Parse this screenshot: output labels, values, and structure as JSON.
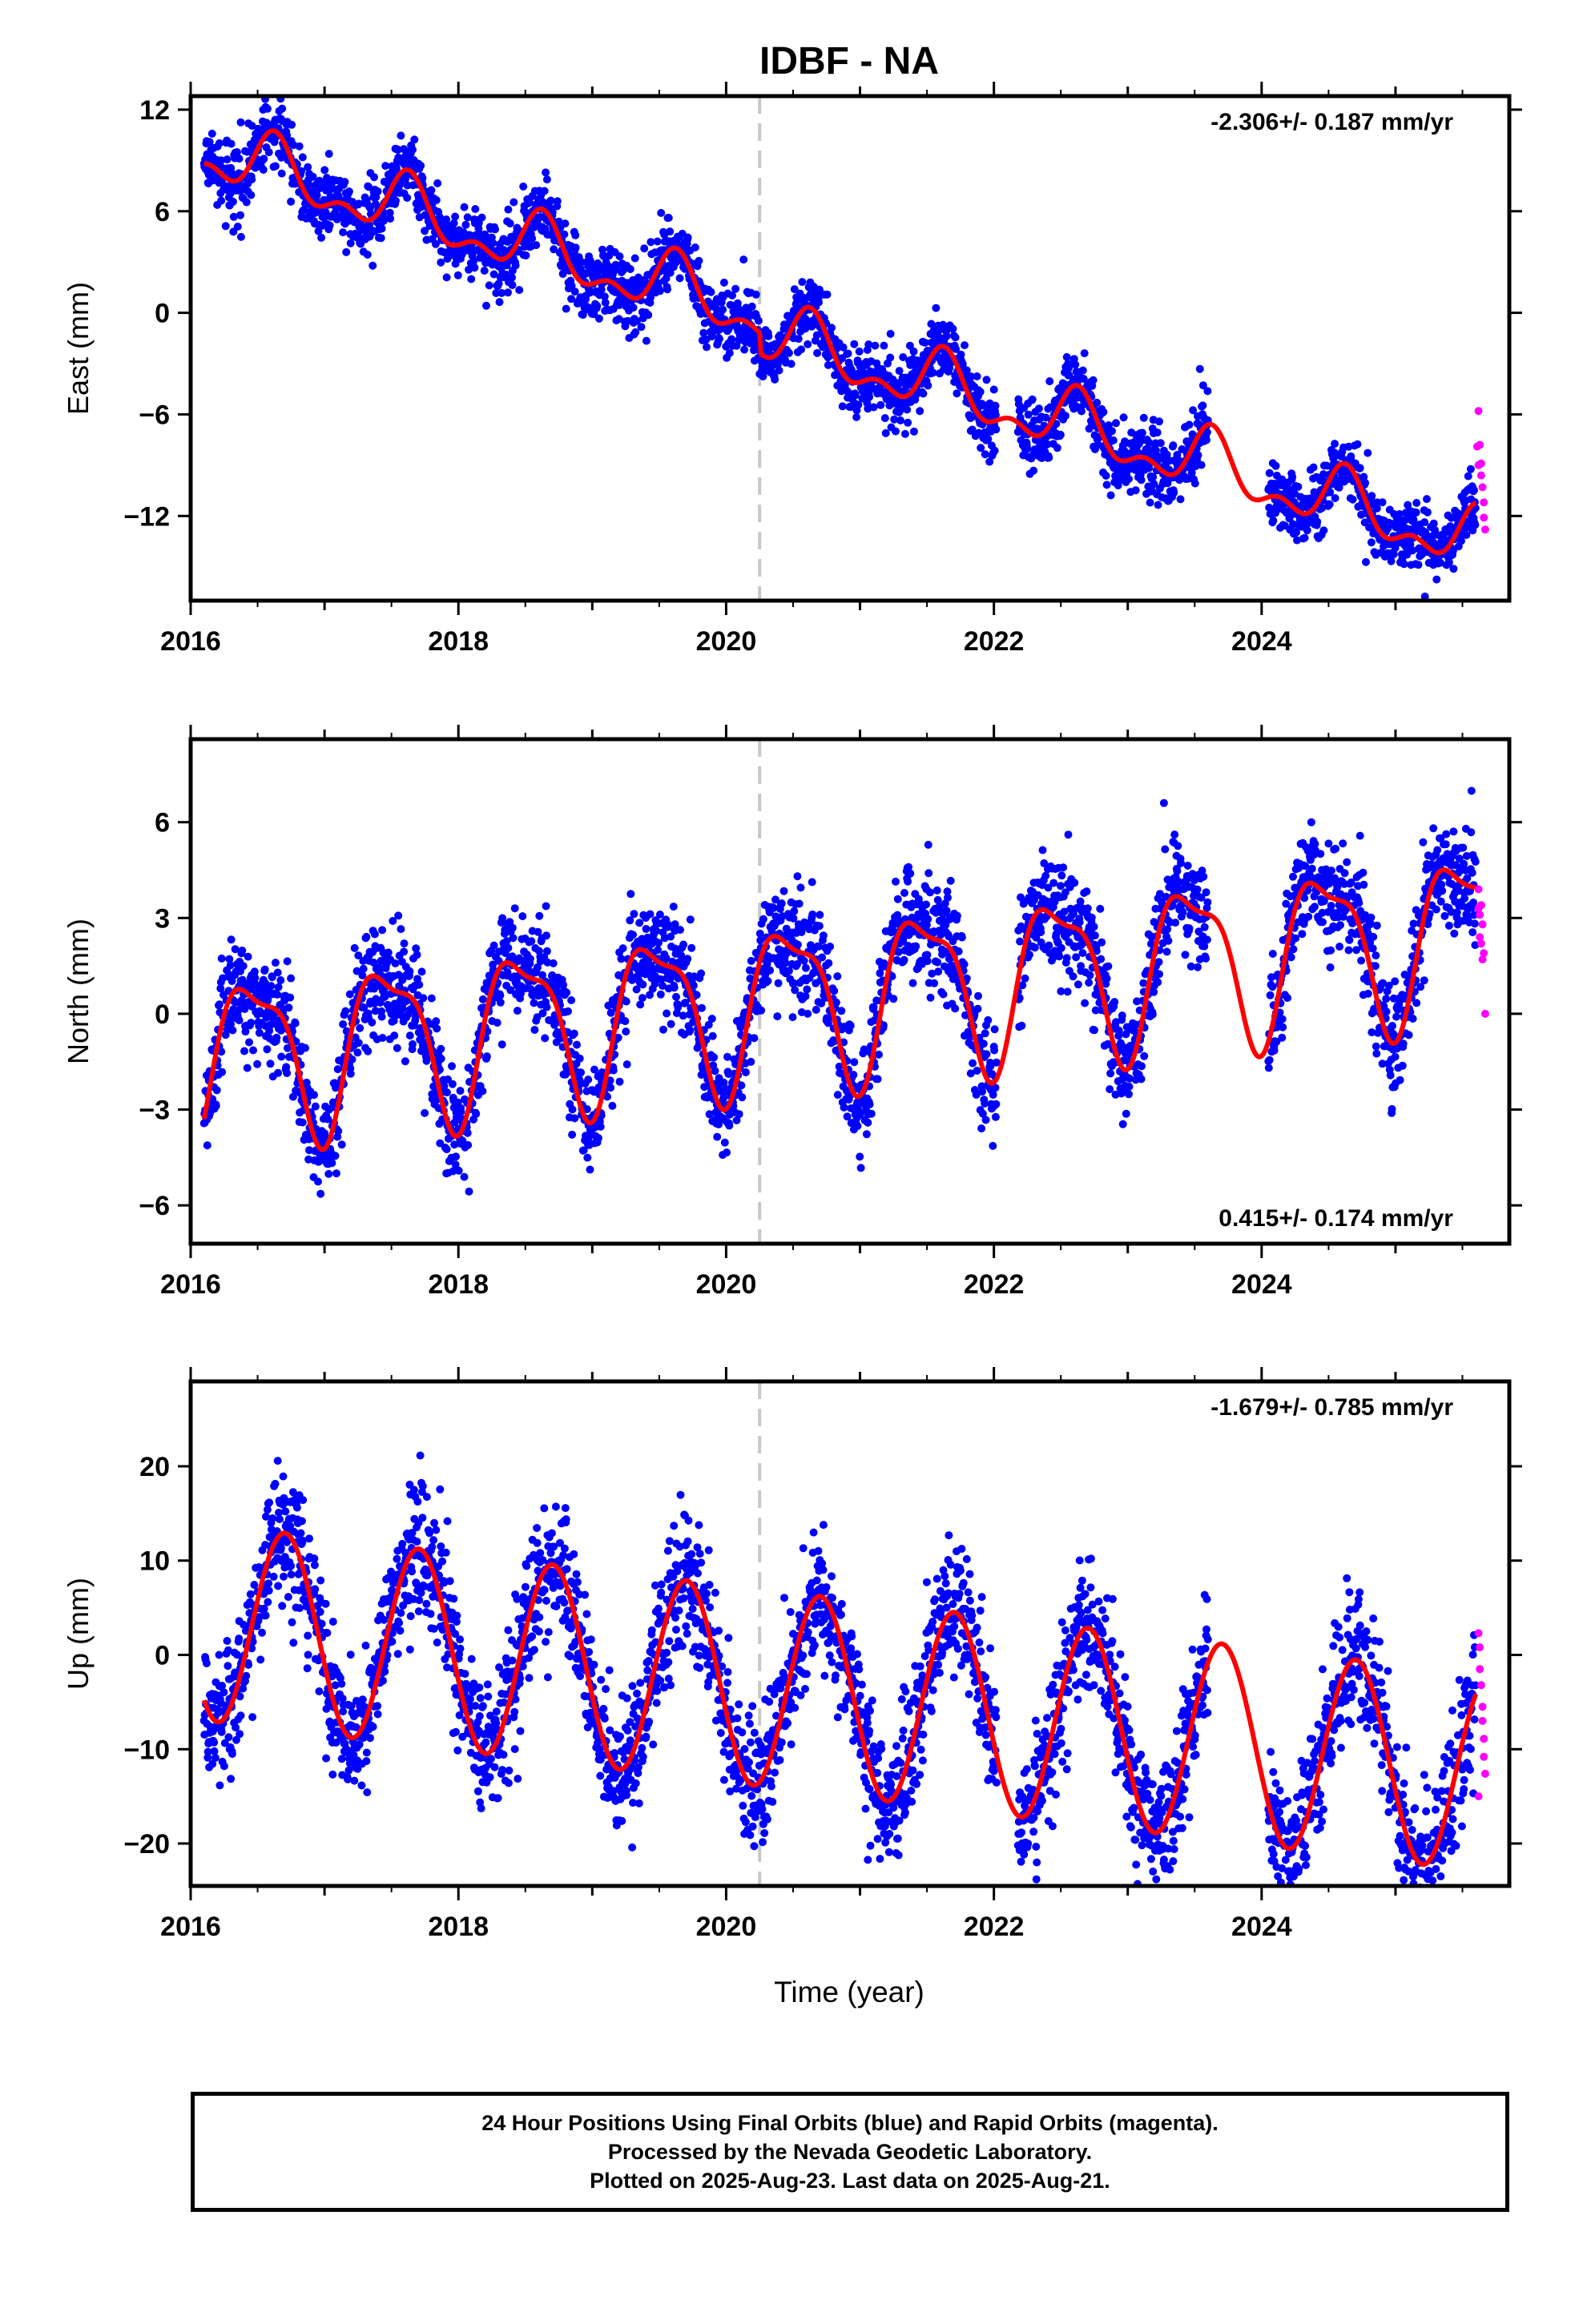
{
  "title": "IDBF - NA",
  "xlabel": "Time (year)",
  "footer": {
    "line1": "24 Hour Positions Using Final Orbits (blue) and Rapid Orbits (magenta).",
    "line2": "Processed by the Nevada Geodetic Laboratory.",
    "line3": "Plotted on 2025-Aug-23. Last data on 2025-Aug-21."
  },
  "colors": {
    "final": "#0000ff",
    "rapid": "#ff00ff",
    "model": "#ff0000",
    "event_line": "#c8c8c8",
    "frame": "#000000"
  },
  "chart_data": [
    {
      "type": "scatter",
      "component": "East",
      "ylabel": "East (mm)",
      "rate_label": "-2.306+/- 0.187 mm/yr",
      "xlim": [
        2016.0,
        2025.85
      ],
      "ylim": [
        -17,
        12.8
      ],
      "yticks": [
        -12,
        -6,
        0,
        6,
        12
      ],
      "xticks": [
        2016,
        2018,
        2020,
        2022,
        2024
      ],
      "event_lines": [
        2020.25
      ],
      "model": {
        "x0": 2016.1,
        "y0": 9.5,
        "rate": -2.306,
        "annual_cos": -1.1,
        "annual_sin": -1.1,
        "semi_cos": 0.0,
        "semi_sin": 0.9,
        "steps": [
          {
            "x": 2020.25,
            "dy": -1.2
          }
        ],
        "segments": [
          [
            2016.1,
            2025.6
          ]
        ]
      },
      "final_points": {
        "gaps": [
          [
            2022.02,
            2022.18
          ],
          [
            2023.6,
            2024.05
          ]
        ],
        "noise_sd": 1.0
      },
      "rapid_points": [
        [
          2025.62,
          -5.8
        ],
        [
          2025.63,
          -7.8
        ],
        [
          2025.64,
          -8.9
        ],
        [
          2025.64,
          -9.6
        ],
        [
          2025.65,
          -10.3
        ],
        [
          2025.66,
          -11.2
        ],
        [
          2025.66,
          -12.1
        ],
        [
          2025.67,
          -12.8
        ],
        [
          2025.61,
          -7.9
        ],
        [
          2025.62,
          -9.0
        ]
      ]
    },
    {
      "type": "scatter",
      "component": "North",
      "ylabel": "North (mm)",
      "rate_label": "0.415+/- 0.174 mm/yr",
      "xlim": [
        2016.0,
        2025.85
      ],
      "ylim": [
        -7.2,
        8.6
      ],
      "yticks": [
        -6,
        -3,
        0,
        3,
        6
      ],
      "xticks": [
        2016,
        2018,
        2020,
        2022,
        2024
      ],
      "event_lines": [
        2020.25
      ],
      "model": {
        "x0": 2016.1,
        "y0": -1.4,
        "rate": 0.415,
        "annual_cos": -2.4,
        "annual_sin": 0.5,
        "semi_cos": -0.8,
        "semi_sin": 0.0,
        "steps": [],
        "segments": [
          [
            2016.1,
            2025.6
          ]
        ]
      },
      "final_points": {
        "gaps": [
          [
            2022.02,
            2022.18
          ],
          [
            2023.6,
            2024.05
          ]
        ],
        "noise_sd": 0.85
      },
      "rapid_points": [
        [
          2025.62,
          3.9
        ],
        [
          2025.63,
          3.1
        ],
        [
          2025.63,
          2.4
        ],
        [
          2025.64,
          3.4
        ],
        [
          2025.65,
          1.7
        ],
        [
          2025.65,
          2.8
        ],
        [
          2025.66,
          1.9
        ],
        [
          2025.67,
          0.0
        ],
        [
          2025.62,
          3.3
        ],
        [
          2025.64,
          2.2
        ]
      ]
    },
    {
      "type": "scatter",
      "component": "Up",
      "ylabel": "Up (mm)",
      "rate_label": "-1.679+/- 0.785 mm/yr",
      "xlim": [
        2016.0,
        2025.85
      ],
      "ylim": [
        -24.5,
        29
      ],
      "yticks": [
        -20,
        -10,
        0,
        10,
        20
      ],
      "xticks": [
        2016,
        2018,
        2020,
        2022,
        2024
      ],
      "event_lines": [
        2020.25
      ],
      "model": {
        "x0": 2016.1,
        "y0": 3.5,
        "rate": -1.679,
        "annual_cos": -3.0,
        "annual_sin": -10.0,
        "semi_cos": 0.0,
        "semi_sin": 0.0,
        "steps": [],
        "segments": [
          [
            2016.1,
            2025.6
          ]
        ]
      },
      "final_points": {
        "gaps": [
          [
            2022.02,
            2022.18
          ],
          [
            2023.6,
            2024.05
          ]
        ],
        "noise_sd": 3.5
      },
      "rapid_points": [
        [
          2025.62,
          2.3
        ],
        [
          2025.63,
          0.8
        ],
        [
          2025.63,
          -1.5
        ],
        [
          2025.64,
          -3.2
        ],
        [
          2025.65,
          -5.5
        ],
        [
          2025.65,
          -7.0
        ],
        [
          2025.66,
          -8.9
        ],
        [
          2025.66,
          -10.8
        ],
        [
          2025.67,
          -12.6
        ],
        [
          2025.62,
          -15.0
        ]
      ]
    }
  ]
}
